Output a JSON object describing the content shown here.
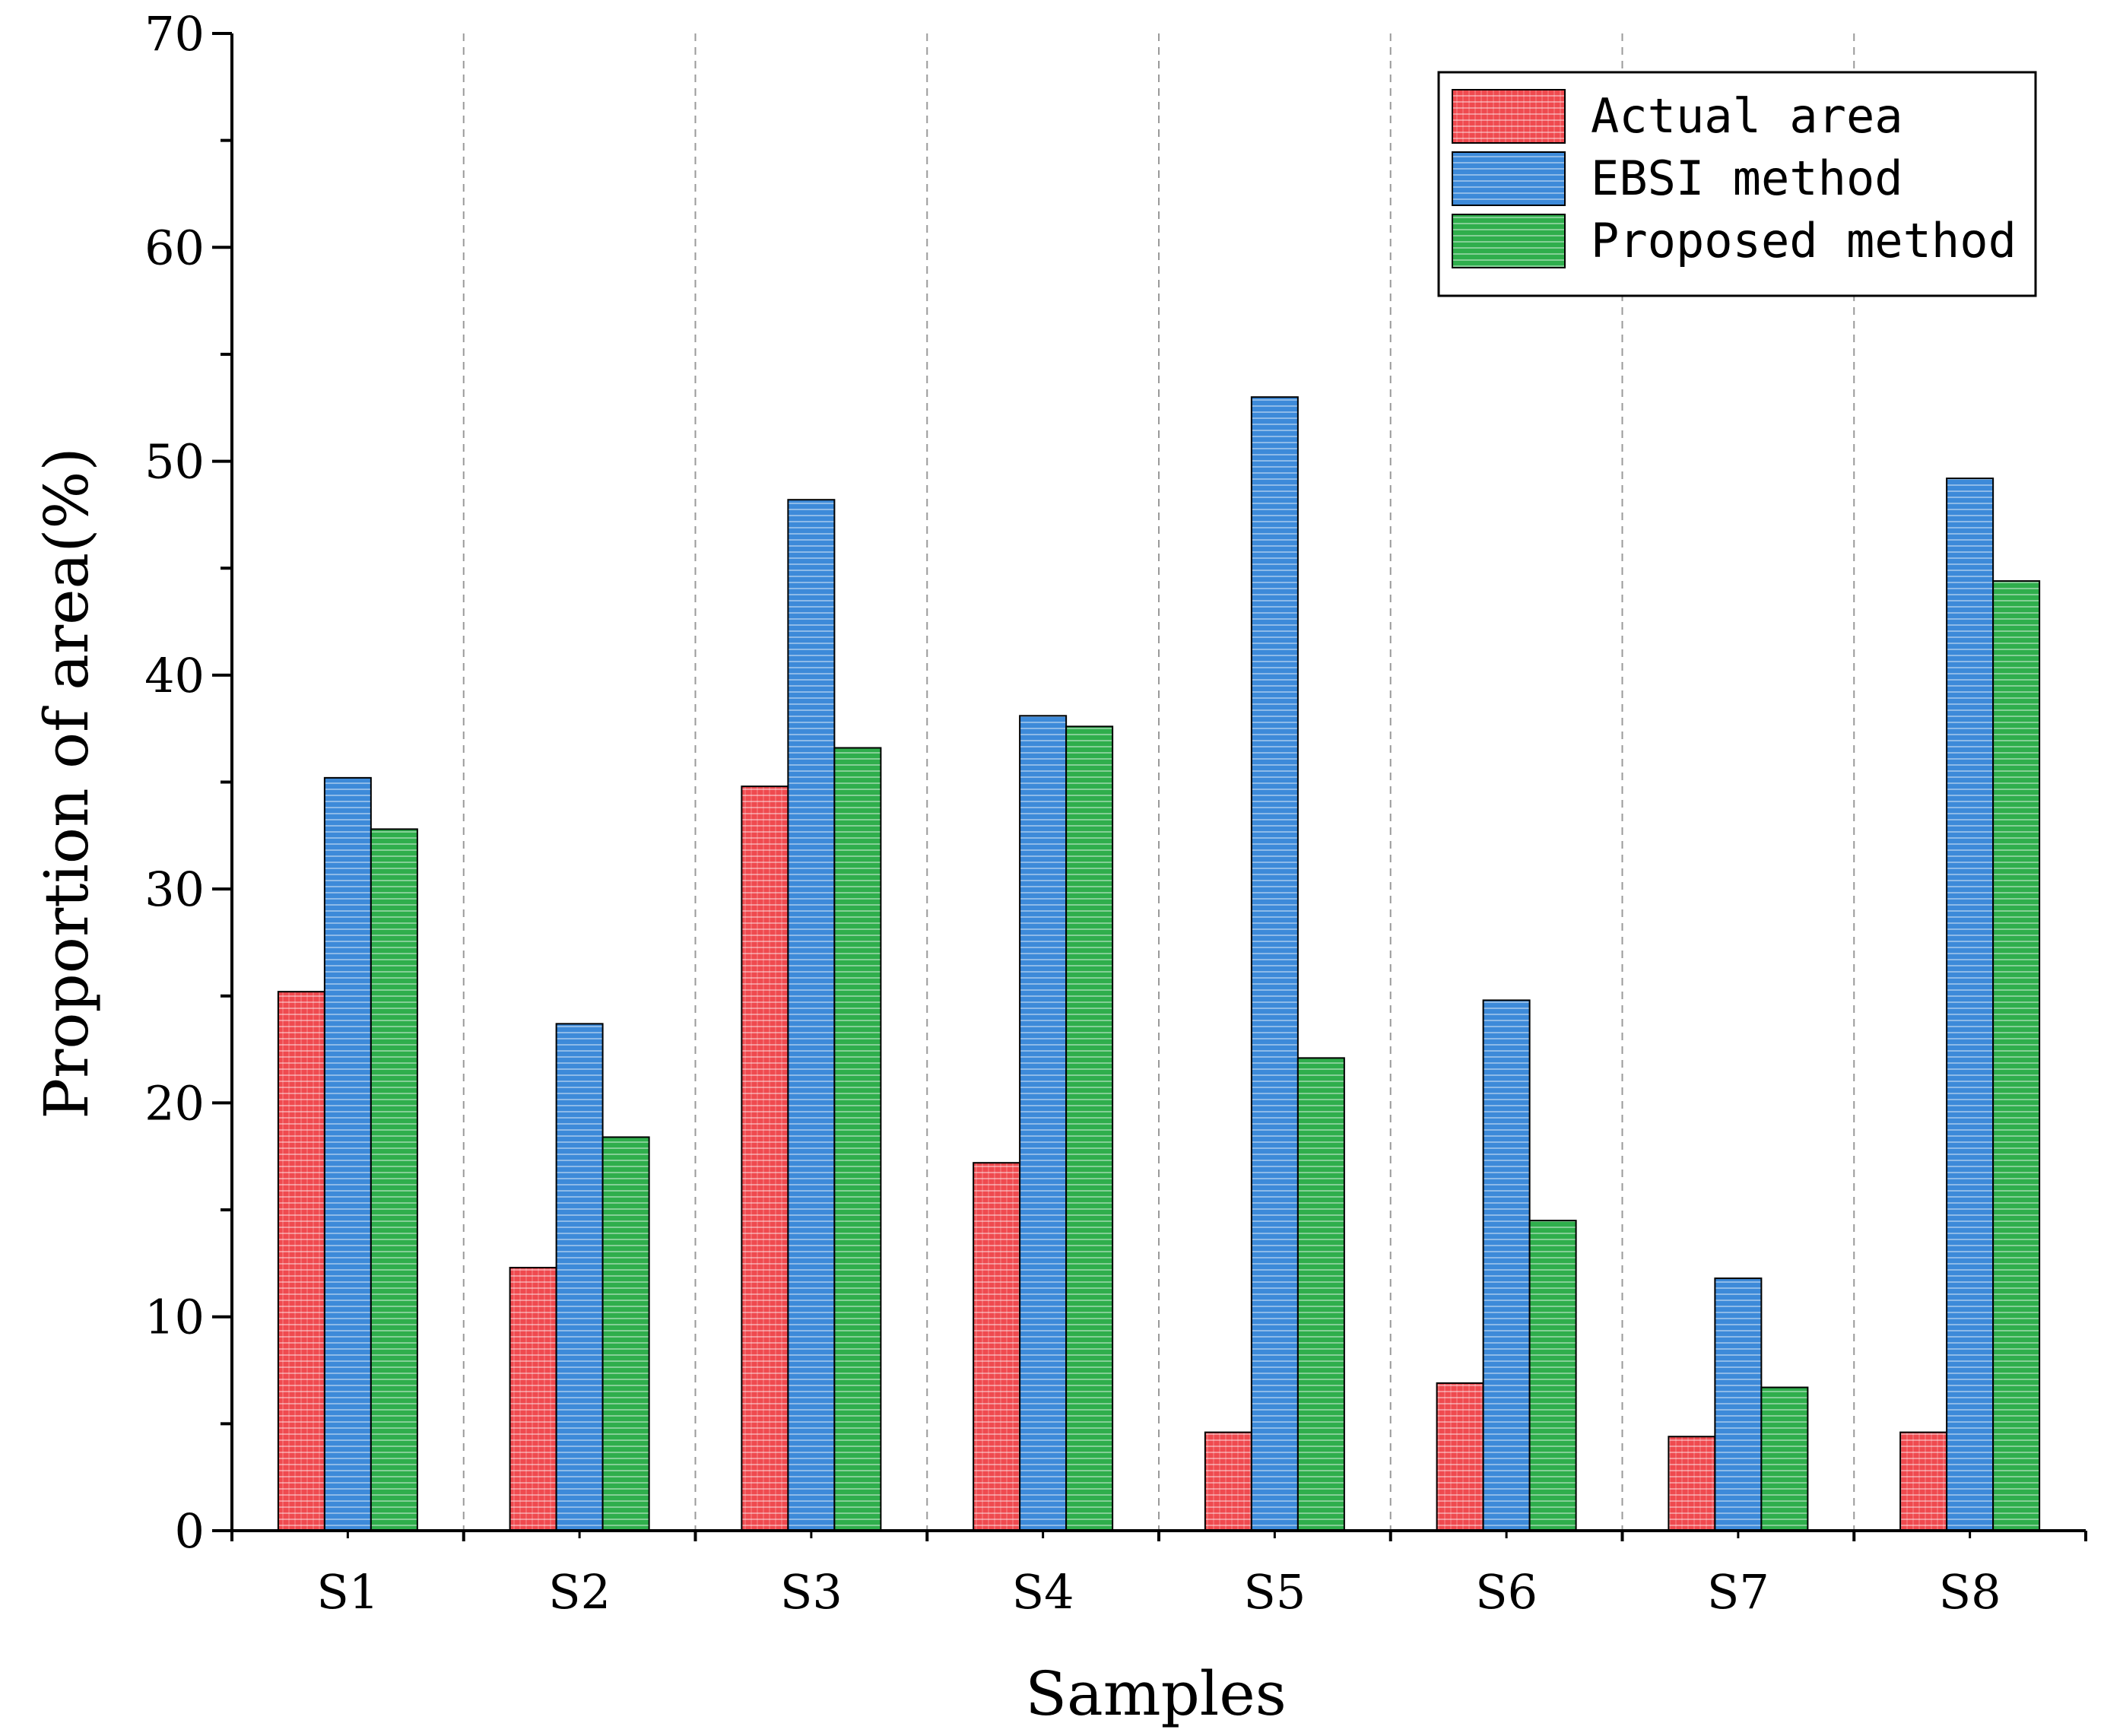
{
  "chart_data": {
    "type": "bar",
    "title": "",
    "xlabel": "Samples",
    "ylabel": "Proportion of area(%)",
    "ylim": [
      0,
      70
    ],
    "yticks": [
      "0",
      "10",
      "20",
      "30",
      "40",
      "50",
      "60",
      "70"
    ],
    "categories": [
      "S1",
      "S2",
      "S3",
      "S4",
      "S5",
      "S6",
      "S7",
      "S8"
    ],
    "series": [
      {
        "name": "Actual area",
        "color": "#e8343a",
        "values": [
          25.2,
          12.3,
          34.8,
          17.2,
          4.6,
          6.9,
          4.4,
          4.6
        ]
      },
      {
        "name": "EBSI method",
        "color": "#3a86d6",
        "values": [
          35.2,
          23.7,
          48.2,
          38.1,
          53.0,
          24.8,
          11.8,
          49.2
        ]
      },
      {
        "name": "Proposed method",
        "color": "#2ea84a",
        "values": [
          32.8,
          18.4,
          36.6,
          37.6,
          22.1,
          14.5,
          6.7,
          44.4
        ]
      }
    ],
    "grid": "vertical dashed separators between categories",
    "legend_position": "top-right"
  }
}
